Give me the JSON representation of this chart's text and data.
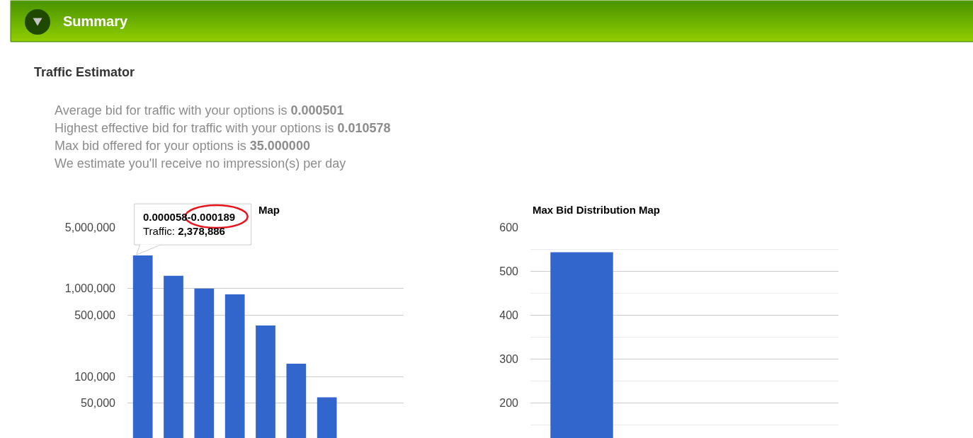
{
  "chart_data": [
    {
      "type": "other",
      "title": "Summary",
      "subtitle": "Traffic Estimator",
      "annotations": [
        "Average bid for traffic with your options is 0.000501",
        "Highest effective bid for traffic with your options is 0.010578",
        "Max bid offered for your options is 35.000000",
        "We estimate you'll receive no impression(s) per day"
      ]
    },
    {
      "type": "bar",
      "title": "Map",
      "categories": [
        null,
        null,
        null,
        null,
        null,
        null,
        null,
        null,
        null
      ],
      "values": [
        2378886,
        1400000,
        1000000,
        860000,
        380000,
        140000,
        58000,
        null,
        null
      ],
      "color": "#3366cc",
      "log": true,
      "ylim": [
        20000,
        5000000
      ],
      "yticks": [
        {
          "value": 5000000,
          "label": "5,000,000"
        },
        {
          "value": 1000000,
          "label": "1,000,000"
        },
        {
          "value": 500000,
          "label": "500,000"
        },
        {
          "value": 100000,
          "label": "100,000"
        },
        {
          "value": 50000,
          "label": "50,000"
        }
      ],
      "grid": "y",
      "tick_labels": "y",
      "annotations": [
        "0.000058-0.000189\nTraffic: 2,378,886"
      ]
    },
    {
      "type": "bar",
      "title": "Max Bid Distribution Map",
      "categories": [
        null,
        null,
        null
      ],
      "values": [
        543,
        null,
        null
      ],
      "color": "#3366cc",
      "ylim": [
        120,
        600
      ],
      "yticks": [
        600,
        {
          "value": 550,
          "label": null
        },
        500,
        {
          "value": 450,
          "label": null
        },
        400,
        {
          "value": 350,
          "label": null
        },
        300,
        {
          "value": 250,
          "label": null
        },
        200,
        {
          "value": 150,
          "label": null
        }
      ],
      "grid": "y",
      "tick_labels": "y"
    }
  ]
}
